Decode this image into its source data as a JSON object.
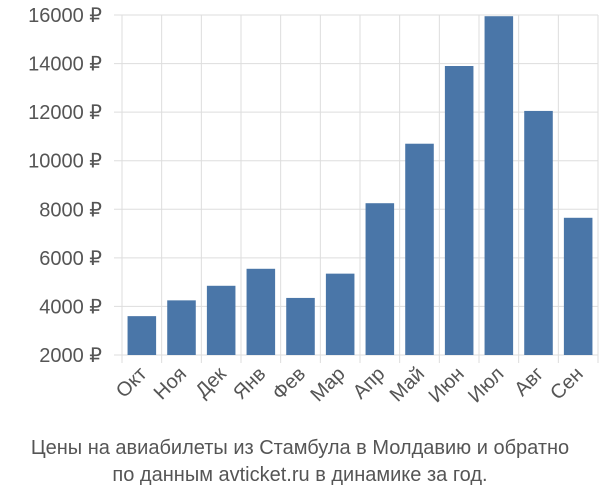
{
  "chart_data": {
    "type": "bar",
    "categories": [
      "Окт",
      "Ноя",
      "Дек",
      "Янв",
      "Фев",
      "Мар",
      "Апр",
      "Май",
      "Июн",
      "Июл",
      "Авг",
      "Сен"
    ],
    "values": [
      3600,
      4250,
      4850,
      5550,
      4350,
      5350,
      8250,
      10700,
      13900,
      15950,
      12050,
      7650
    ],
    "y_tick_labels": [
      "2000 ₽",
      "4000 ₽",
      "6000 ₽",
      "8000 ₽",
      "10000 ₽",
      "12000 ₽",
      "14000 ₽",
      "16000 ₽"
    ],
    "y_ticks": [
      2000,
      4000,
      6000,
      8000,
      10000,
      12000,
      14000,
      16000
    ],
    "ylim": [
      2000,
      16000
    ],
    "currency": "₽",
    "grid": true,
    "bar_color": "#4a76a8",
    "grid_color": "#dddddd",
    "caption_line1": "Цены на авиабилеты из Стамбула в Молдавию и обратно",
    "caption_line2": "по данным avticket.ru в динамике за год."
  }
}
